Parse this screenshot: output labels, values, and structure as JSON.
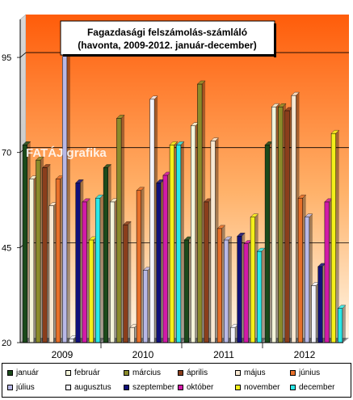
{
  "chart_data": {
    "type": "bar",
    "title": [
      "Fagazdasági felszámolás-számláló",
      "(havonta, 2009-2012. január-december)"
    ],
    "watermark": "FATÁJ grafika",
    "categories": [
      "2009",
      "2010",
      "2011",
      "2012"
    ],
    "yticks": [
      20,
      45,
      70,
      95
    ],
    "ylim": [
      20,
      105
    ],
    "grid": "horizontal",
    "legend_position": "bottom",
    "series": [
      {
        "name": "január",
        "color": "#1b4a1b",
        "values": [
          72,
          66,
          47,
          72
        ]
      },
      {
        "name": "február",
        "color": "#f4f4da",
        "values": [
          63,
          57,
          77,
          82
        ]
      },
      {
        "name": "március",
        "color": "#8b8b2a",
        "values": [
          68,
          79,
          88,
          82
        ]
      },
      {
        "name": "április",
        "color": "#8a3e1c",
        "values": [
          66,
          51,
          57,
          81
        ]
      },
      {
        "name": "május",
        "color": "#f8e8d2",
        "values": [
          56,
          24,
          73,
          85
        ]
      },
      {
        "name": "június",
        "color": "#e7702a",
        "values": [
          63,
          60,
          50,
          58
        ]
      },
      {
        "name": "július",
        "color": "#b8b8e6",
        "values": [
          100,
          39,
          47,
          53
        ]
      },
      {
        "name": "augusztus",
        "color": "#f3f3fb",
        "values": [
          21,
          84,
          24,
          35
        ]
      },
      {
        "name": "szeptember",
        "color": "#10107a",
        "values": [
          62,
          62,
          48,
          40
        ]
      },
      {
        "name": "október",
        "color": "#d11aa8",
        "values": [
          57,
          64,
          46,
          57
        ]
      },
      {
        "name": "november",
        "color": "#f4ef1a",
        "values": [
          47,
          72,
          53,
          75
        ]
      },
      {
        "name": "december",
        "color": "#2ae8e8",
        "values": [
          58,
          72,
          44,
          29
        ]
      }
    ]
  }
}
